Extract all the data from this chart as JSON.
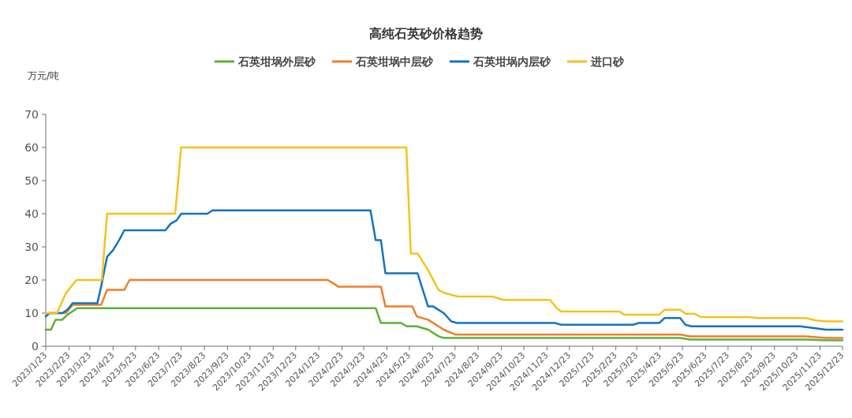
{
  "chart_data": {
    "type": "line",
    "title": "高纯石英砂价格趋势",
    "ylabel": "万元/吨",
    "legend": "top",
    "xlim": [
      "2023-01-23",
      "2025-12-23"
    ],
    "ylim": [
      0,
      70
    ],
    "yticks": [
      0,
      10,
      20,
      30,
      40,
      50,
      60,
      70
    ],
    "xticks": [
      {
        "value": "2023-01-23",
        "label": "2023/1/23"
      },
      {
        "value": "2023-02-23",
        "label": "2023/2/23"
      },
      {
        "value": "2023-03-23",
        "label": "2023/3/23"
      },
      {
        "value": "2023-04-23",
        "label": "2023/4/23"
      },
      {
        "value": "2023-05-23",
        "label": "2023/5/23"
      },
      {
        "value": "2023-06-23",
        "label": "2023/6/23"
      },
      {
        "value": "2023-07-23",
        "label": "2023/7/23"
      },
      {
        "value": "2023-08-23",
        "label": "2023/8/23"
      },
      {
        "value": "2023-09-23",
        "label": "2023/9/23"
      },
      {
        "value": "2023-10-23",
        "label": "2023/10/23"
      },
      {
        "value": "2023-11-23",
        "label": "2023/11/23"
      },
      {
        "value": "2023-12-23",
        "label": "2023/12/23"
      },
      {
        "value": "2024-01-23",
        "label": "2024/1/23"
      },
      {
        "value": "2024-02-23",
        "label": "2024/2/23"
      },
      {
        "value": "2024-03-23",
        "label": "2024/3/23"
      },
      {
        "value": "2024-04-23",
        "label": "2024/4/23"
      },
      {
        "value": "2024-05-23",
        "label": "2024/5/23"
      },
      {
        "value": "2024-06-23",
        "label": "2024/6/23"
      },
      {
        "value": "2024-07-23",
        "label": "2024/7/23"
      },
      {
        "value": "2024-08-23",
        "label": "2024/8/23"
      },
      {
        "value": "2024-09-23",
        "label": "2024/9/23"
      },
      {
        "value": "2024-10-23",
        "label": "2024/10/23"
      },
      {
        "value": "2024-11-23",
        "label": "2024/11/23"
      },
      {
        "value": "2024-12-23",
        "label": "2024/12/23"
      },
      {
        "value": "2025-01-23",
        "label": "2025/1/23"
      },
      {
        "value": "2025-02-23",
        "label": "2025/2/23"
      },
      {
        "value": "2025-03-23",
        "label": "2025/3/23"
      },
      {
        "value": "2025-04-23",
        "label": "2025/4/23"
      },
      {
        "value": "2025-05-23",
        "label": "2025/5/23"
      },
      {
        "value": "2025-06-23",
        "label": "2025/6/23"
      },
      {
        "value": "2025-07-23",
        "label": "2025/7/23"
      },
      {
        "value": "2025-08-23",
        "label": "2025/8/23"
      },
      {
        "value": "2025-09-23",
        "label": "2025/9/23"
      },
      {
        "value": "2025-10-23",
        "label": "2025/10/23"
      },
      {
        "value": "2025-11-23",
        "label": "2025/11/23"
      },
      {
        "value": "2025-12-23",
        "label": "2025/12/23"
      }
    ],
    "series": [
      {
        "name": "石英坩埚外层砂",
        "color": "#5cb03a",
        "x": [
          "2023-01-23",
          "2023-01-30",
          "2023-02-05",
          "2023-02-14",
          "2023-02-21",
          "2023-03-06",
          "2024-04-08",
          "2024-04-15",
          "2024-05-12",
          "2024-05-20",
          "2024-06-02",
          "2024-06-17",
          "2024-07-01",
          "2024-07-08",
          "2025-05-20",
          "2025-06-02",
          "2025-11-04",
          "2025-12-01",
          "2025-12-23"
        ],
        "values": [
          5,
          5,
          8,
          8,
          9.5,
          11.5,
          11.5,
          7,
          7,
          6,
          6,
          5,
          3,
          2.5,
          2.5,
          2,
          2,
          1.8,
          1.8
        ]
      },
      {
        "name": "石英坩埚中层砂",
        "color": "#f07d2b",
        "x": [
          "2023-01-23",
          "2023-02-19",
          "2023-02-28",
          "2023-04-07",
          "2023-04-15",
          "2023-05-08",
          "2023-05-15",
          "2024-02-04",
          "2024-02-18",
          "2024-04-15",
          "2024-04-21",
          "2024-05-27",
          "2024-06-02",
          "2024-06-17",
          "2024-07-08",
          "2024-07-24",
          "2025-05-20",
          "2025-06-02",
          "2025-11-04",
          "2025-12-01",
          "2025-12-23"
        ],
        "values": [
          10,
          10,
          12.5,
          12.5,
          17,
          17,
          20,
          20,
          18,
          18,
          12,
          12,
          9,
          8,
          5,
          3.5,
          3.5,
          3,
          3,
          2.5,
          2.5
        ]
      },
      {
        "name": "石英坩埚内层砂",
        "color": "#1373c1",
        "x": [
          "2023-01-23",
          "2023-01-28",
          "2023-02-14",
          "2023-02-21",
          "2023-02-28",
          "2023-04-02",
          "2023-04-07",
          "2023-04-15",
          "2023-04-23",
          "2023-05-01",
          "2023-05-08",
          "2023-07-02",
          "2023-07-09",
          "2023-07-17",
          "2023-07-23",
          "2023-08-27",
          "2023-09-03",
          "2024-04-01",
          "2024-04-08",
          "2024-04-15",
          "2024-04-21",
          "2024-06-03",
          "2024-06-17",
          "2024-06-24",
          "2024-07-08",
          "2024-07-18",
          "2024-07-26",
          "2024-12-04",
          "2024-12-12",
          "2025-03-18",
          "2025-03-25",
          "2025-04-22",
          "2025-04-29",
          "2025-05-20",
          "2025-05-27",
          "2025-06-04",
          "2025-10-28",
          "2025-11-15",
          "2025-12-01",
          "2025-12-23"
        ],
        "values": [
          9,
          10,
          10,
          11,
          13,
          13,
          18,
          27,
          29,
          32,
          35,
          35,
          37,
          38,
          40,
          40,
          41,
          41,
          32,
          32,
          22,
          22,
          12,
          12,
          10,
          7.5,
          7,
          7,
          6.5,
          6.5,
          7,
          7,
          8.5,
          8.5,
          6.5,
          6,
          6,
          5.5,
          5,
          5
        ]
      },
      {
        "name": "进口砂",
        "color": "#f6c21b",
        "x": [
          "2023-01-23",
          "2023-02-07",
          "2023-02-19",
          "2023-03-05",
          "2023-04-08",
          "2023-04-15",
          "2023-07-15",
          "2023-07-23",
          "2024-05-19",
          "2024-05-25",
          "2024-06-03",
          "2024-06-17",
          "2024-07-01",
          "2024-07-10",
          "2024-07-27",
          "2024-09-11",
          "2024-09-26",
          "2024-11-27",
          "2024-12-06",
          "2024-12-12",
          "2025-02-28",
          "2025-03-06",
          "2025-04-22",
          "2025-04-29",
          "2025-05-20",
          "2025-05-27",
          "2025-06-08",
          "2025-06-17",
          "2025-08-19",
          "2025-09-01",
          "2025-11-04",
          "2025-11-17",
          "2025-12-02",
          "2025-12-23"
        ],
        "values": [
          10,
          10,
          16,
          20,
          20,
          40,
          40,
          60,
          60,
          28,
          28,
          23,
          17,
          16,
          15,
          15,
          14,
          14,
          11.5,
          10.5,
          10.5,
          9.5,
          9.5,
          11,
          11,
          9.8,
          9.8,
          8.8,
          8.8,
          8.5,
          8.5,
          7.8,
          7.5,
          7.5
        ]
      }
    ]
  }
}
